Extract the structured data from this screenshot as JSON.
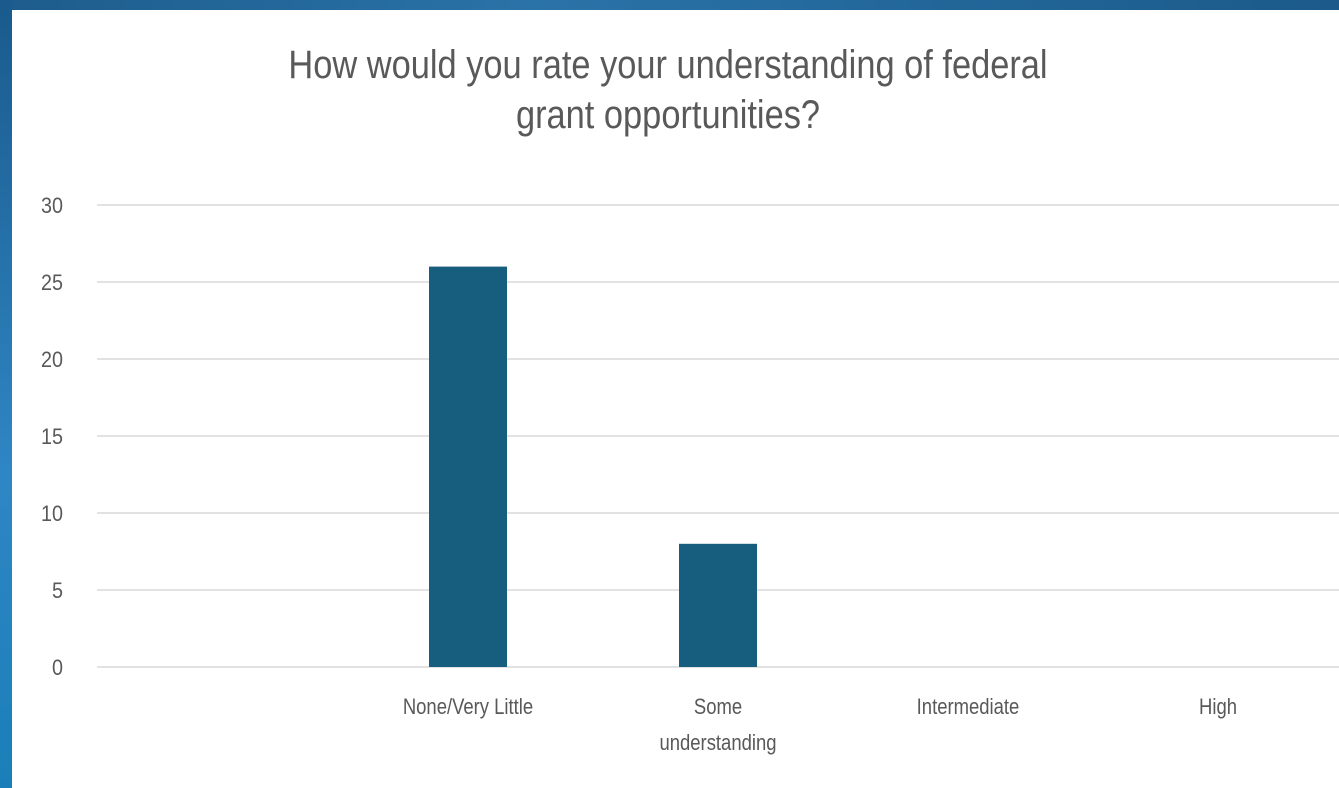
{
  "chart_data": {
    "type": "bar",
    "title_lines": [
      "How would you rate your understanding of federal",
      "grant opportunities?"
    ],
    "categories": [
      {
        "label_lines": [
          "None/Very Little"
        ]
      },
      {
        "label_lines": [
          "Some",
          "understanding"
        ]
      },
      {
        "label_lines": [
          "Intermediate"
        ]
      },
      {
        "label_lines": [
          "High"
        ]
      }
    ],
    "values": [
      26,
      8,
      0,
      0
    ],
    "ylim": [
      0,
      30
    ],
    "yticks": [
      0,
      5,
      10,
      15,
      20,
      25,
      30
    ],
    "grid": true,
    "legend": "none",
    "bar_color": "#175e7e",
    "grid_color": "#d9d9d9",
    "text_color": "#595959"
  }
}
